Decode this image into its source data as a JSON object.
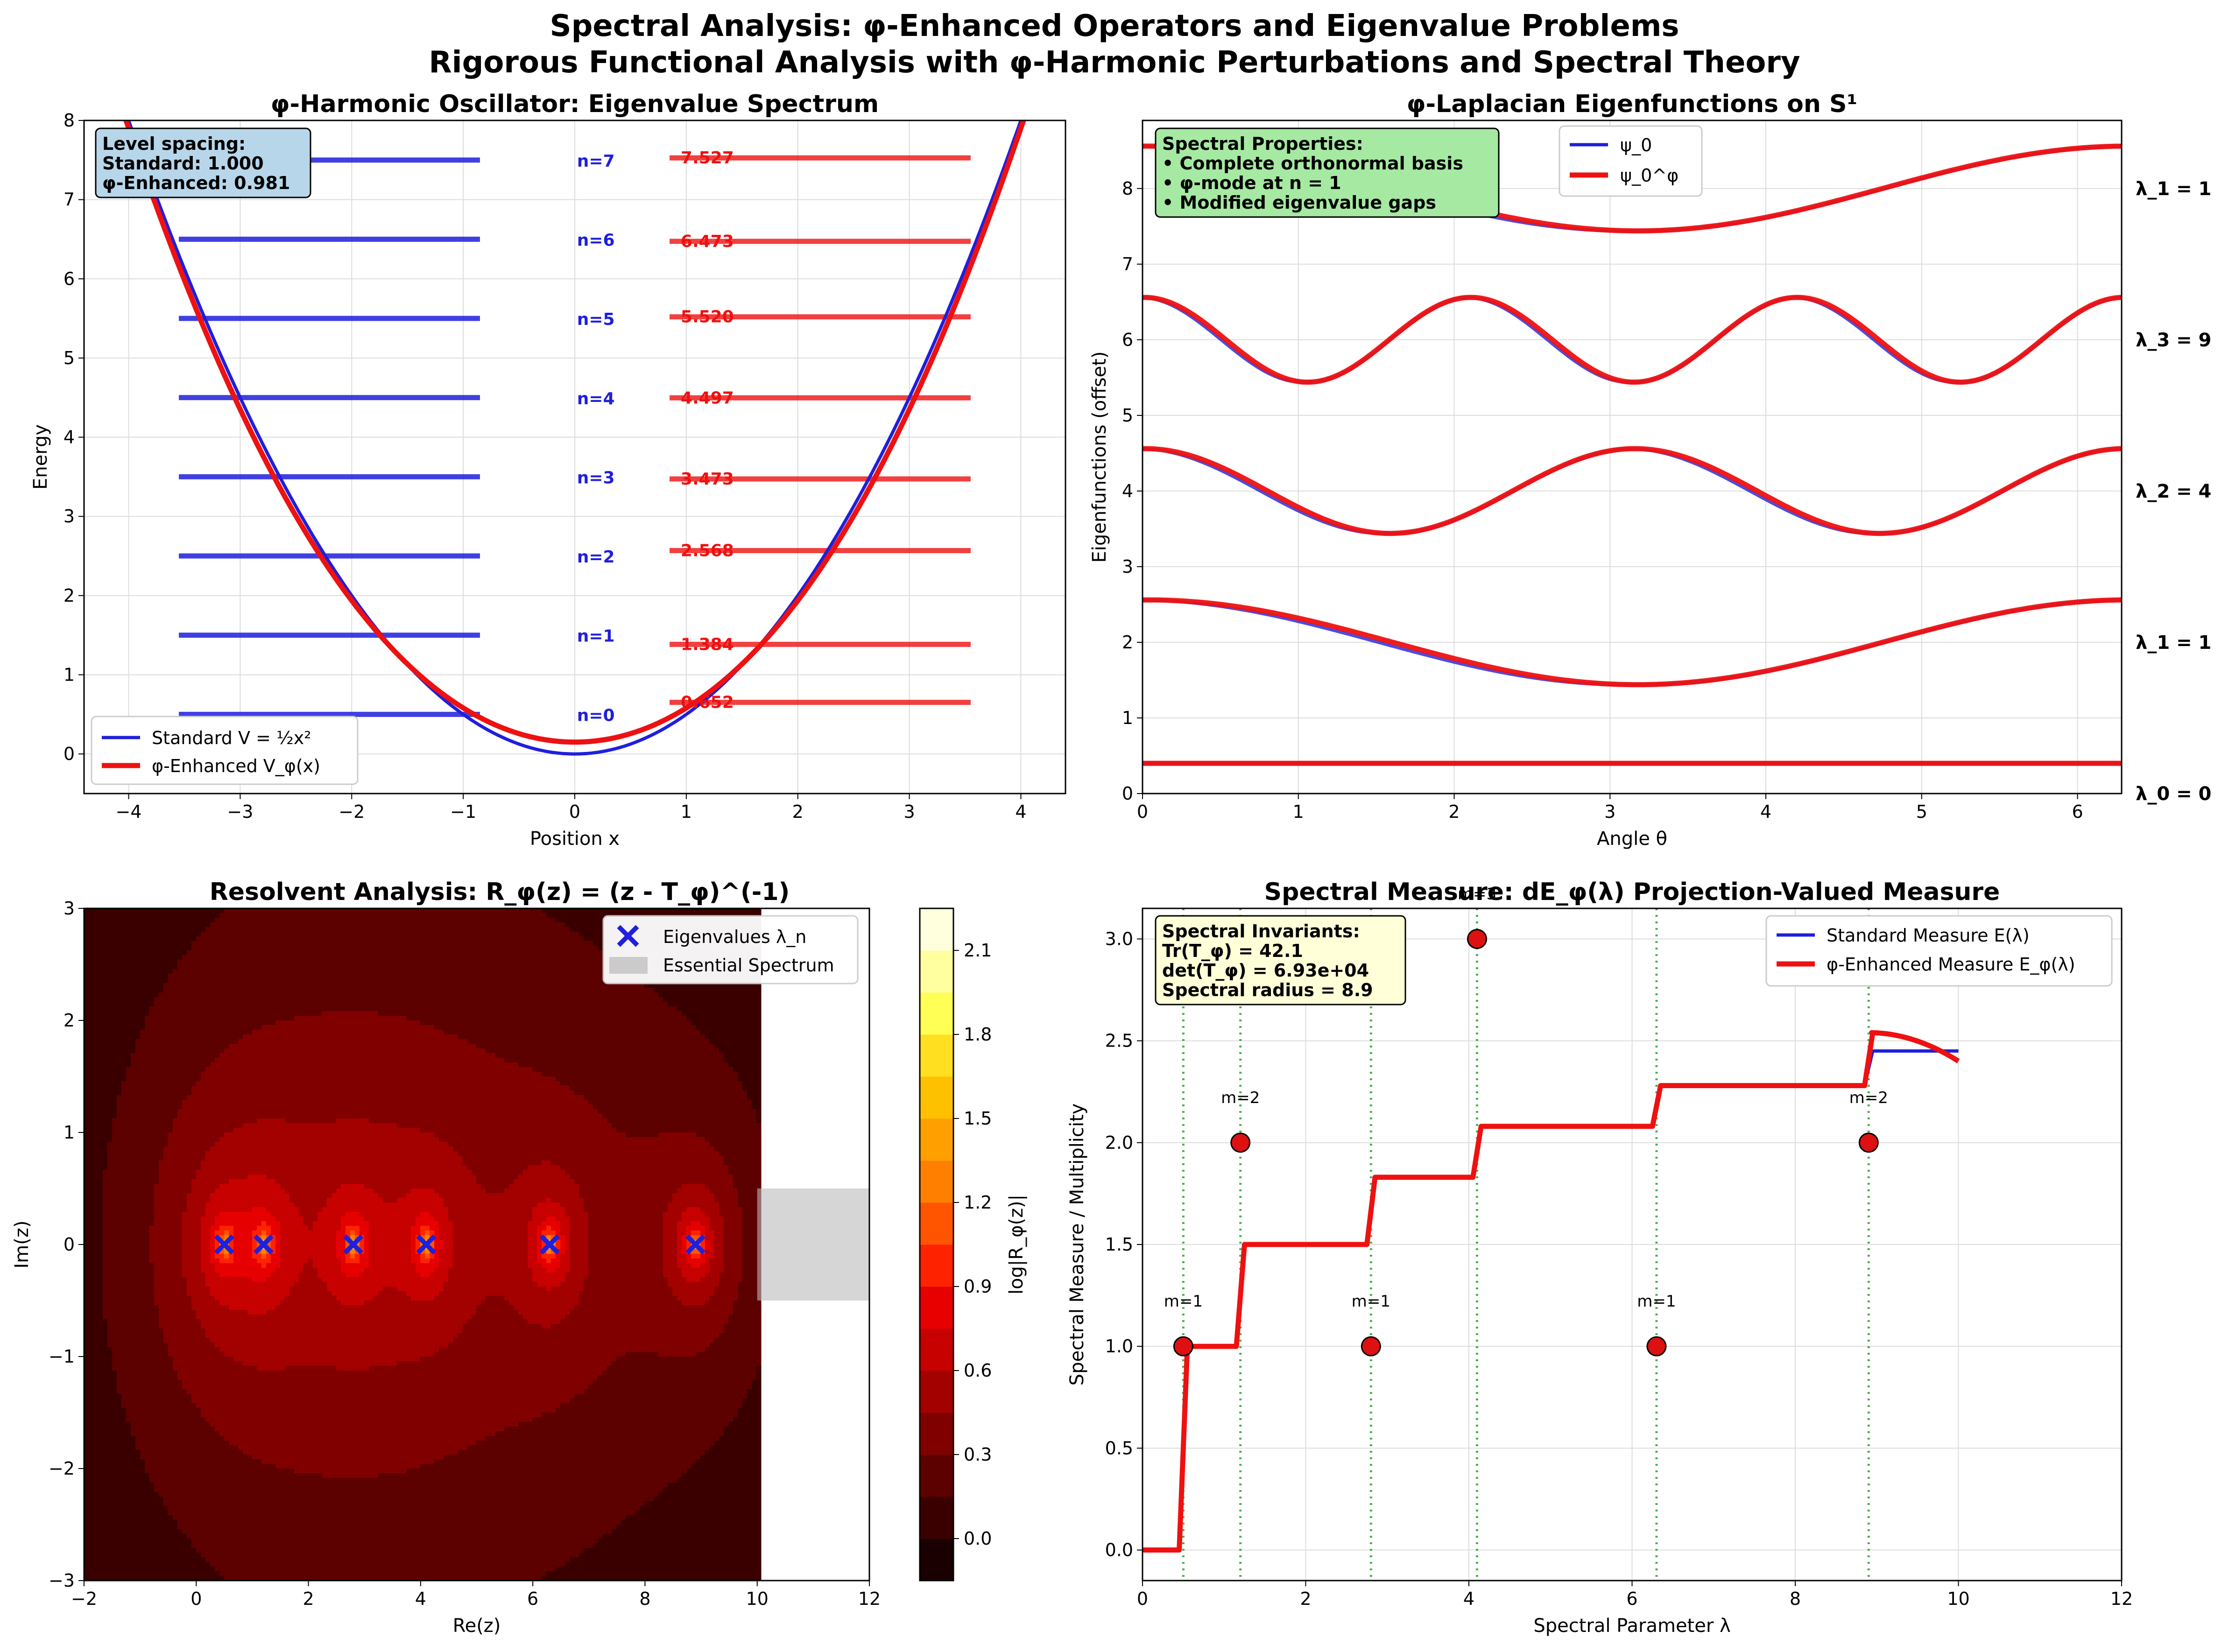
{
  "figure": {
    "title_line1": "Spectral Analysis: φ-Enhanced Operators and Eigenvalue Problems",
    "title_line2": "Rigorous Functional Analysis with φ-Harmonic Perturbations and Spectral Theory"
  },
  "colors": {
    "blue": "#1f1fdd",
    "red": "#ee1111",
    "green": "#2ca02c"
  },
  "chart_data": [
    {
      "id": "oscillator",
      "type": "line",
      "title": "φ-Harmonic Oscillator: Eigenvalue Spectrum",
      "xlabel": "Position x",
      "ylabel": "Energy",
      "xlim": [
        -4.4,
        4.4
      ],
      "ylim": [
        -0.5,
        8
      ],
      "xticks": [
        -4,
        -3,
        -2,
        -1,
        0,
        1,
        2,
        3,
        4
      ],
      "yticks": [
        0,
        1,
        2,
        3,
        4,
        5,
        6,
        7,
        8
      ],
      "grid": true,
      "legend_position": "lower-left",
      "series": [
        {
          "name": "Standard V = ½x²",
          "formula": "0.5*x^2",
          "x_range": [
            -4.4,
            4.4
          ]
        },
        {
          "name": "φ-Enhanced V_φ(x)",
          "formula": "0.5*x^2 + 0.15*cos(x)",
          "x_range": [
            -4.4,
            4.4
          ]
        }
      ],
      "standard_levels": {
        "x_range": [
          -3.55,
          -0.85
        ],
        "energies": [
          0.5,
          1.5,
          2.5,
          3.5,
          4.5,
          5.5,
          6.5,
          7.5
        ]
      },
      "level_labels": [
        "n=0",
        "n=1",
        "n=2",
        "n=3",
        "n=4",
        "n=5",
        "n=6",
        "n=7"
      ],
      "phi_levels": {
        "x_range": [
          0.85,
          3.55
        ],
        "energies": [
          0.652,
          1.384,
          2.568,
          3.473,
          4.497,
          5.52,
          6.473,
          7.527
        ],
        "labels": [
          "0.652",
          "1.384",
          "2.568",
          "3.473",
          "4.497",
          "5.520",
          "6.473",
          "7.527"
        ]
      },
      "info_box": [
        "Level spacing:",
        "Standard: 1.000",
        "φ-Enhanced: 0.981"
      ]
    },
    {
      "id": "eigenfunctions",
      "type": "line",
      "title": "φ-Laplacian Eigenfunctions on S¹",
      "xlabel": "Angle θ",
      "ylabel": "Eigenfunctions (offset)",
      "xlim": [
        0,
        6.283
      ],
      "ylim": [
        0,
        8.9
      ],
      "xticks": [
        0,
        1,
        2,
        3,
        4,
        5,
        6
      ],
      "yticks": [
        0,
        1,
        2,
        3,
        4,
        5,
        6,
        7,
        8
      ],
      "grid": true,
      "legend_position": "top-center",
      "legend": [
        "ψ_0",
        "ψ_0^φ"
      ],
      "curves": [
        {
          "offset": 0.4,
          "amplitude": 0.0,
          "mode": 0
        },
        {
          "offset": 2.0,
          "amplitude": 0.56,
          "mode": 1
        },
        {
          "offset": 4.0,
          "amplitude": 0.56,
          "mode": 2
        },
        {
          "offset": 6.0,
          "amplitude": 0.56,
          "mode": 3
        },
        {
          "offset": 8.0,
          "amplitude": 0.56,
          "mode": 1
        }
      ],
      "right_labels": [
        {
          "y": 0.0,
          "text": "λ_0 = 0"
        },
        {
          "y": 2.0,
          "text": "λ_1 = 1"
        },
        {
          "y": 4.0,
          "text": "λ_2 = 4"
        },
        {
          "y": 6.0,
          "text": "λ_3 = 9"
        },
        {
          "y": 8.0,
          "text": "λ_1 = 1"
        }
      ],
      "info_box": [
        "Spectral Properties:",
        "• Complete orthonormal basis",
        "• φ-mode at n = 1",
        "• Modified eigenvalue gaps"
      ]
    },
    {
      "id": "resolvent",
      "type": "heatmap",
      "title": "Resolvent Analysis: R_φ(z) = (z - T_φ)^(-1)",
      "xlabel": "Re(z)",
      "ylabel": "Im(z)",
      "xlim": [
        -2,
        12
      ],
      "ylim": [
        -3,
        3
      ],
      "xticks": [
        -2,
        0,
        2,
        4,
        6,
        8,
        10,
        12
      ],
      "yticks": [
        -3,
        -2,
        -1,
        0,
        1,
        2,
        3
      ],
      "heatmap_xrange": [
        -2,
        10
      ],
      "eigenvalues": [
        0.5,
        1.2,
        2.8,
        4.1,
        6.3,
        8.9
      ],
      "essential_spectrum": {
        "x": [
          10,
          12
        ],
        "y": [
          -0.5,
          0.5
        ]
      },
      "colorbar": {
        "label": "log|R_φ(z)|",
        "range": [
          -0.15,
          2.25
        ],
        "ticks": [
          "0.0",
          "0.3",
          "0.6",
          "0.9",
          "1.2",
          "1.5",
          "1.8",
          "2.1"
        ]
      },
      "legend": [
        "Eigenvalues λ_n",
        "Essential Spectrum"
      ],
      "legend_position": "top-right"
    },
    {
      "id": "spectral_measure",
      "type": "line",
      "title": "Spectral Measure: dE_φ(λ) Projection-Valued Measure",
      "xlabel": "Spectral Parameter λ",
      "ylabel": "Spectral Measure / Multiplicity",
      "xlim": [
        0,
        12
      ],
      "ylim": [
        -0.15,
        3.15
      ],
      "xticks": [
        0,
        2,
        4,
        6,
        8,
        10,
        12
      ],
      "yticks": [
        "0.0",
        "0.5",
        "1.0",
        "1.5",
        "2.0",
        "2.5",
        "3.0"
      ],
      "grid": true,
      "legend_position": "top-right",
      "legend": [
        "Standard Measure E(λ)",
        "φ-Enhanced Measure E_φ(λ)"
      ],
      "eigenvalues": [
        0.5,
        1.2,
        2.8,
        4.1,
        6.3,
        8.9
      ],
      "multiplicities": [
        1,
        2,
        1,
        3,
        1,
        2
      ],
      "multiplicity_labels": [
        "m=1",
        "m=2",
        "m=1",
        "m=3",
        "m=1",
        "m=2"
      ],
      "step_levels": [
        0,
        1.0,
        1.5,
        1.83,
        2.08,
        2.28,
        2.45
      ],
      "phi_tail": {
        "x": [
          8.9,
          10.0
        ],
        "y": [
          2.54,
          2.4
        ]
      },
      "standard_tail": {
        "x": [
          8.9,
          10.0
        ],
        "y": [
          2.45,
          2.45
        ]
      },
      "info_box": [
        "Spectral Invariants:",
        "Tr(T_φ) = 42.1",
        "det(T_φ) = 6.93e+04",
        "Spectral radius = 8.9"
      ]
    }
  ]
}
